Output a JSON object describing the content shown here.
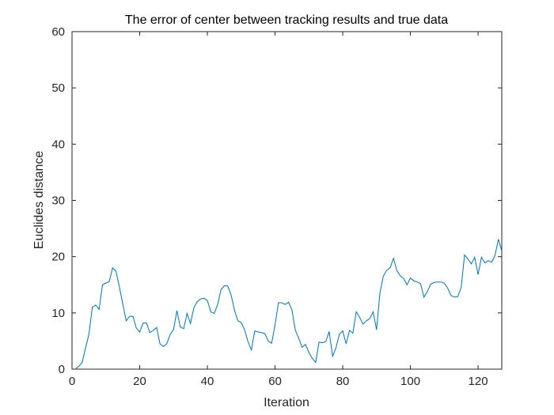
{
  "chart_data": {
    "type": "line",
    "title": "The error of center between tracking results and true data",
    "xlabel": "Iteration",
    "ylabel": "Euclides distance",
    "xlim": [
      0,
      127
    ],
    "ylim": [
      0,
      60
    ],
    "xticks": [
      0,
      20,
      40,
      60,
      80,
      100,
      120
    ],
    "yticks": [
      0,
      10,
      20,
      30,
      40,
      50,
      60
    ],
    "grid": false,
    "line_color": "#0072BD",
    "series": [
      {
        "x": [
          1,
          2,
          3,
          4,
          5,
          6,
          7,
          8,
          9,
          10,
          11,
          12,
          13,
          14,
          15,
          16,
          17,
          18,
          19,
          20,
          21,
          22,
          23,
          24,
          25,
          26,
          27,
          28,
          29,
          30,
          31,
          32,
          33,
          34,
          35,
          36,
          37,
          38,
          39,
          40,
          41,
          42,
          43,
          44,
          45,
          46,
          47,
          48,
          49,
          50,
          51,
          52,
          53,
          54,
          55,
          56,
          57,
          58,
          59,
          60,
          61,
          62,
          63,
          64,
          65,
          66,
          67,
          68,
          69,
          70,
          71,
          72,
          73,
          74,
          75,
          76,
          77,
          78,
          79,
          80,
          81,
          82,
          83,
          84,
          85,
          86,
          87,
          88,
          89,
          90,
          91,
          92,
          93,
          94,
          95,
          96,
          97,
          98,
          99,
          100,
          101,
          102,
          103,
          104,
          105,
          106,
          107,
          108,
          109,
          110,
          111,
          112,
          113,
          114,
          115,
          116,
          117,
          118,
          119,
          120,
          121,
          122,
          123,
          124,
          125,
          126,
          127
        ],
        "y": [
          0,
          0.5,
          1.2,
          3.8,
          6.2,
          11.0,
          11.4,
          10.6,
          15.0,
          15.3,
          15.6,
          18.0,
          17.4,
          14.6,
          11.6,
          8.6,
          9.4,
          9.4,
          7.3,
          6.6,
          8.2,
          8.2,
          6.5,
          6.9,
          7.4,
          4.5,
          4.0,
          4.5,
          6.2,
          7.0,
          10.4,
          7.5,
          7.2,
          9.9,
          8.1,
          10.9,
          12.0,
          12.5,
          12.6,
          12.2,
          10.2,
          9.9,
          11.4,
          14.1,
          14.8,
          14.8,
          13.2,
          10.5,
          8.6,
          8.3,
          7.0,
          4.9,
          3.4,
          6.8,
          6.6,
          6.5,
          6.3,
          5.0,
          4.6,
          7.9,
          11.8,
          11.8,
          11.5,
          11.9,
          10.5,
          6.9,
          5.5,
          3.9,
          4.4,
          3.0,
          1.9,
          1.2,
          4.8,
          4.7,
          4.9,
          6.7,
          2.3,
          3.8,
          6.2,
          6.8,
          4.5,
          6.9,
          6.4,
          10.2,
          9.2,
          8.0,
          8.6,
          9.0,
          10.2,
          7.0,
          13.6,
          16.5,
          17.6,
          18.0,
          19.7,
          17.5,
          16.6,
          16.1,
          15.0,
          16.2,
          15.7,
          15.5,
          15.2,
          12.8,
          13.8,
          15.1,
          15.4,
          15.5,
          15.5,
          15.3,
          14.4,
          13.1,
          12.8,
          12.9,
          14.5,
          20.3,
          19.6,
          18.7,
          19.9,
          16.8,
          19.9,
          18.9,
          19.3,
          19.0,
          20.2,
          23.1,
          21.0
        ]
      }
    ]
  }
}
